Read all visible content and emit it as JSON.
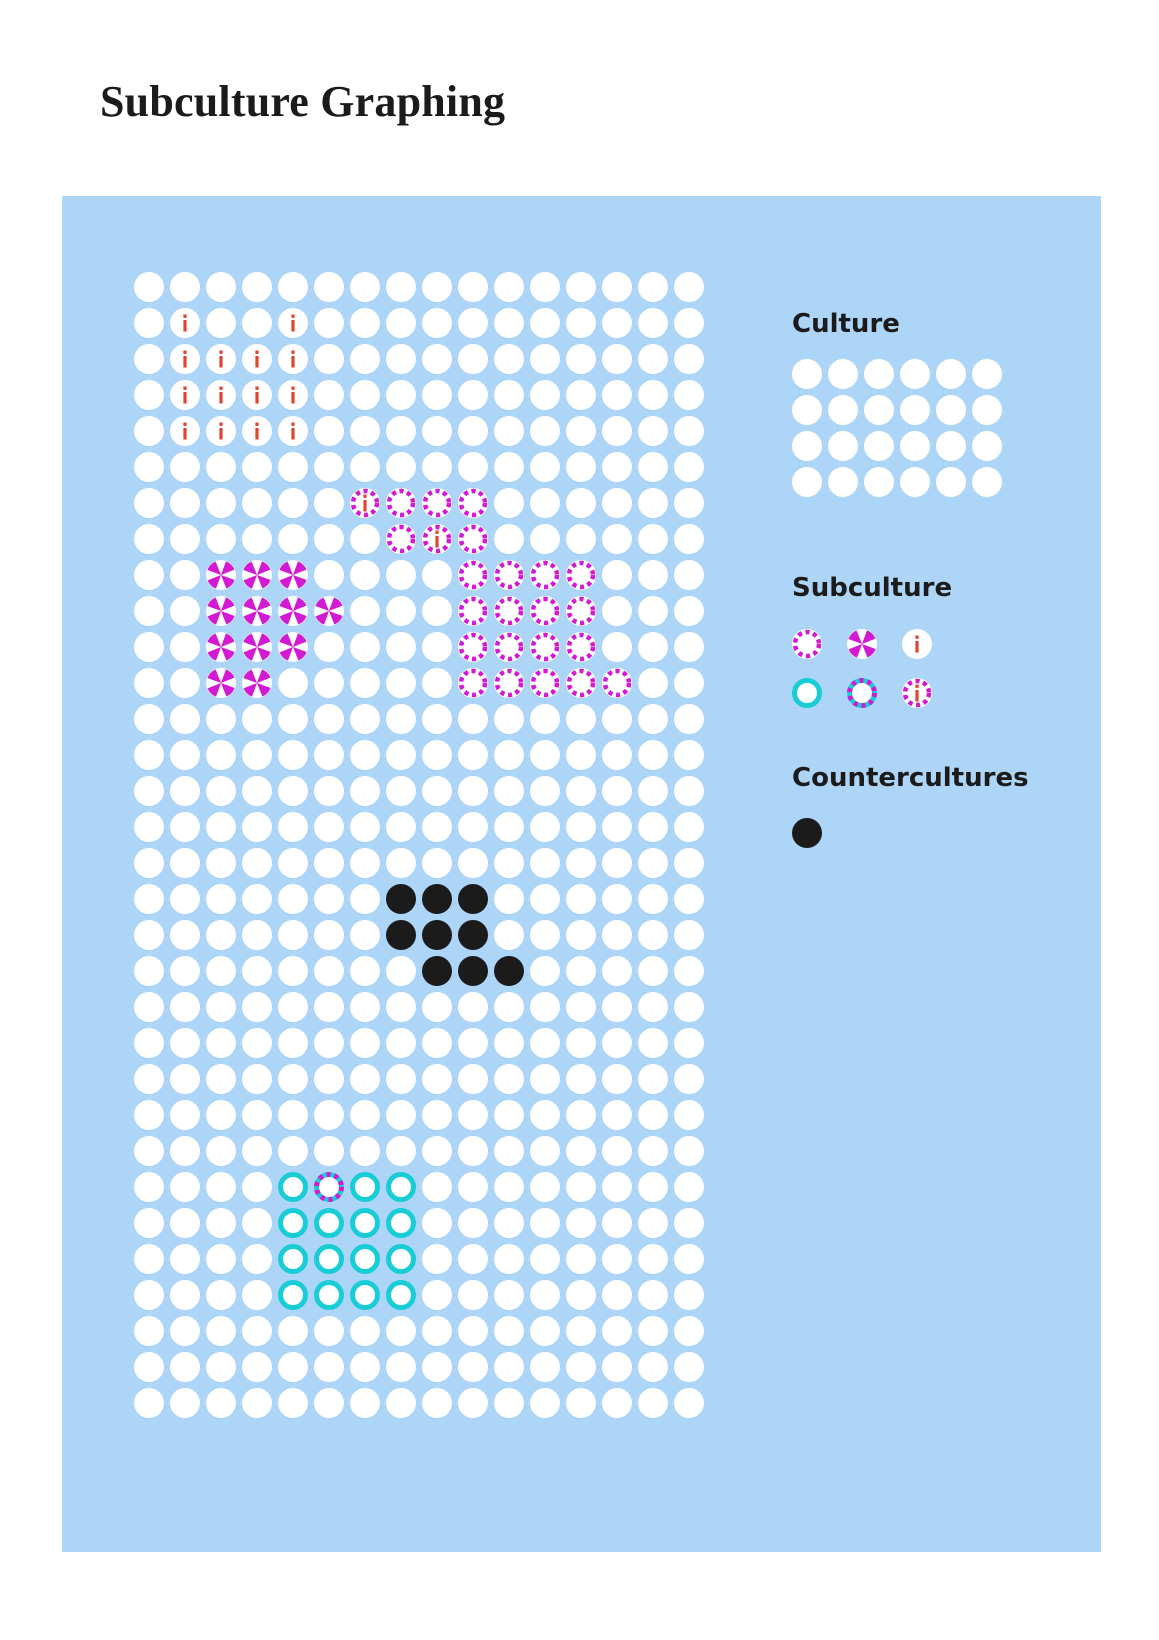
{
  "title": "Subculture Graphing",
  "colors": {
    "background": "#acd5f8",
    "culture_dot": "#ffffff",
    "subculture_magenta": "#d21ad2",
    "subculture_teal": "#19cdd7",
    "subculture_i": "#e0452f",
    "counterculture": "#1b1b1b"
  },
  "legend": {
    "culture_heading": "Culture",
    "subculture_heading": "Subculture",
    "counterculture_heading": "Countercultures",
    "subculture_types": [
      "dashed",
      "pinwheel",
      "i",
      "ring",
      "dashring",
      "dashedi"
    ]
  },
  "grid": {
    "cols": 16,
    "rows": 32,
    "cells": [
      {
        "r": 1,
        "c": 1,
        "t": "i"
      },
      {
        "r": 1,
        "c": 4,
        "t": "i"
      },
      {
        "r": 2,
        "c": 1,
        "t": "i"
      },
      {
        "r": 2,
        "c": 2,
        "t": "i"
      },
      {
        "r": 2,
        "c": 3,
        "t": "i"
      },
      {
        "r": 2,
        "c": 4,
        "t": "i"
      },
      {
        "r": 3,
        "c": 1,
        "t": "i"
      },
      {
        "r": 3,
        "c": 2,
        "t": "i"
      },
      {
        "r": 3,
        "c": 3,
        "t": "i"
      },
      {
        "r": 3,
        "c": 4,
        "t": "i"
      },
      {
        "r": 4,
        "c": 1,
        "t": "i"
      },
      {
        "r": 4,
        "c": 2,
        "t": "i"
      },
      {
        "r": 4,
        "c": 3,
        "t": "i"
      },
      {
        "r": 4,
        "c": 4,
        "t": "i"
      },
      {
        "r": 6,
        "c": 6,
        "t": "dashedi"
      },
      {
        "r": 6,
        "c": 7,
        "t": "dashed"
      },
      {
        "r": 6,
        "c": 8,
        "t": "dashed"
      },
      {
        "r": 6,
        "c": 9,
        "t": "dashed"
      },
      {
        "r": 7,
        "c": 7,
        "t": "dashed"
      },
      {
        "r": 7,
        "c": 8,
        "t": "dashedi"
      },
      {
        "r": 7,
        "c": 9,
        "t": "dashed"
      },
      {
        "r": 8,
        "c": 2,
        "t": "pinwheel"
      },
      {
        "r": 8,
        "c": 3,
        "t": "pinwheel"
      },
      {
        "r": 8,
        "c": 4,
        "t": "pinwheel"
      },
      {
        "r": 8,
        "c": 9,
        "t": "dashed"
      },
      {
        "r": 8,
        "c": 10,
        "t": "dashed"
      },
      {
        "r": 8,
        "c": 11,
        "t": "dashed"
      },
      {
        "r": 8,
        "c": 12,
        "t": "dashed"
      },
      {
        "r": 9,
        "c": 2,
        "t": "pinwheel"
      },
      {
        "r": 9,
        "c": 3,
        "t": "pinwheel"
      },
      {
        "r": 9,
        "c": 4,
        "t": "pinwheel"
      },
      {
        "r": 9,
        "c": 5,
        "t": "pinwheel"
      },
      {
        "r": 9,
        "c": 9,
        "t": "dashed"
      },
      {
        "r": 9,
        "c": 10,
        "t": "dashed"
      },
      {
        "r": 9,
        "c": 11,
        "t": "dashed"
      },
      {
        "r": 9,
        "c": 12,
        "t": "dashed"
      },
      {
        "r": 10,
        "c": 2,
        "t": "pinwheel"
      },
      {
        "r": 10,
        "c": 3,
        "t": "pinwheel"
      },
      {
        "r": 10,
        "c": 4,
        "t": "pinwheel"
      },
      {
        "r": 10,
        "c": 9,
        "t": "dashed"
      },
      {
        "r": 10,
        "c": 10,
        "t": "dashed"
      },
      {
        "r": 10,
        "c": 11,
        "t": "dashed"
      },
      {
        "r": 10,
        "c": 12,
        "t": "dashed"
      },
      {
        "r": 11,
        "c": 2,
        "t": "pinwheel"
      },
      {
        "r": 11,
        "c": 3,
        "t": "pinwheel"
      },
      {
        "r": 11,
        "c": 9,
        "t": "dashed"
      },
      {
        "r": 11,
        "c": 10,
        "t": "dashed"
      },
      {
        "r": 11,
        "c": 11,
        "t": "dashed"
      },
      {
        "r": 11,
        "c": 12,
        "t": "dashed"
      },
      {
        "r": 11,
        "c": 13,
        "t": "dashed"
      },
      {
        "r": 17,
        "c": 7,
        "t": "black"
      },
      {
        "r": 17,
        "c": 8,
        "t": "black"
      },
      {
        "r": 17,
        "c": 9,
        "t": "black"
      },
      {
        "r": 18,
        "c": 7,
        "t": "black"
      },
      {
        "r": 18,
        "c": 8,
        "t": "black"
      },
      {
        "r": 18,
        "c": 9,
        "t": "black"
      },
      {
        "r": 19,
        "c": 8,
        "t": "black"
      },
      {
        "r": 19,
        "c": 9,
        "t": "black"
      },
      {
        "r": 19,
        "c": 10,
        "t": "black"
      },
      {
        "r": 25,
        "c": 4,
        "t": "ring"
      },
      {
        "r": 25,
        "c": 5,
        "t": "dashring"
      },
      {
        "r": 25,
        "c": 6,
        "t": "ring"
      },
      {
        "r": 25,
        "c": 7,
        "t": "ring"
      },
      {
        "r": 26,
        "c": 4,
        "t": "ring"
      },
      {
        "r": 26,
        "c": 5,
        "t": "ring"
      },
      {
        "r": 26,
        "c": 6,
        "t": "ring"
      },
      {
        "r": 26,
        "c": 7,
        "t": "ring"
      },
      {
        "r": 27,
        "c": 4,
        "t": "ring"
      },
      {
        "r": 27,
        "c": 5,
        "t": "ring"
      },
      {
        "r": 27,
        "c": 6,
        "t": "ring"
      },
      {
        "r": 27,
        "c": 7,
        "t": "ring"
      },
      {
        "r": 28,
        "c": 4,
        "t": "ring"
      },
      {
        "r": 28,
        "c": 5,
        "t": "ring"
      },
      {
        "r": 28,
        "c": 6,
        "t": "ring"
      },
      {
        "r": 28,
        "c": 7,
        "t": "ring"
      }
    ]
  }
}
